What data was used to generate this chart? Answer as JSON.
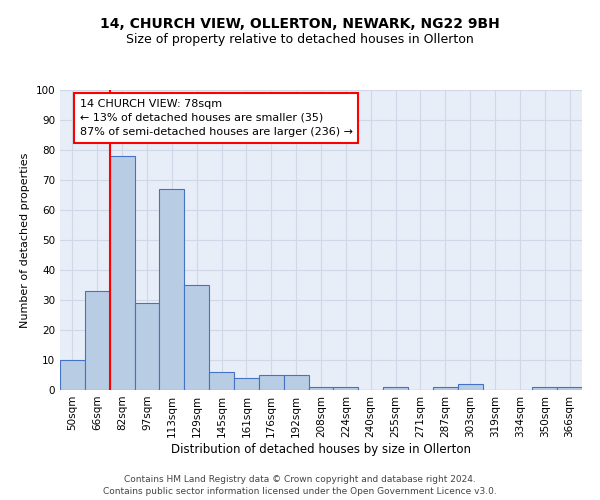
{
  "title1": "14, CHURCH VIEW, OLLERTON, NEWARK, NG22 9BH",
  "title2": "Size of property relative to detached houses in Ollerton",
  "xlabel": "Distribution of detached houses by size in Ollerton",
  "ylabel": "Number of detached properties",
  "bins": [
    "50sqm",
    "66sqm",
    "82sqm",
    "97sqm",
    "113sqm",
    "129sqm",
    "145sqm",
    "161sqm",
    "176sqm",
    "192sqm",
    "208sqm",
    "224sqm",
    "240sqm",
    "255sqm",
    "271sqm",
    "287sqm",
    "303sqm",
    "319sqm",
    "334sqm",
    "350sqm",
    "366sqm"
  ],
  "values": [
    10,
    33,
    78,
    29,
    67,
    35,
    6,
    4,
    5,
    5,
    1,
    1,
    0,
    1,
    0,
    1,
    2,
    0,
    0,
    1,
    1
  ],
  "bar_color": "#b8cce4",
  "bar_edge_color": "#4472c4",
  "bar_linewidth": 0.8,
  "annotation_text": "14 CHURCH VIEW: 78sqm\n← 13% of detached houses are smaller (35)\n87% of semi-detached houses are larger (236) →",
  "annotation_box_color": "white",
  "annotation_box_edge": "red",
  "property_line_color": "red",
  "ylim": [
    0,
    100
  ],
  "yticks": [
    0,
    10,
    20,
    30,
    40,
    50,
    60,
    70,
    80,
    90,
    100
  ],
  "grid_color": "#d0d8e8",
  "bg_color": "#e8eef8",
  "footer1": "Contains HM Land Registry data © Crown copyright and database right 2024.",
  "footer2": "Contains public sector information licensed under the Open Government Licence v3.0.",
  "title1_fontsize": 10,
  "title2_fontsize": 9,
  "xlabel_fontsize": 8.5,
  "ylabel_fontsize": 8,
  "tick_fontsize": 7.5,
  "annotation_fontsize": 8,
  "footer_fontsize": 6.5
}
